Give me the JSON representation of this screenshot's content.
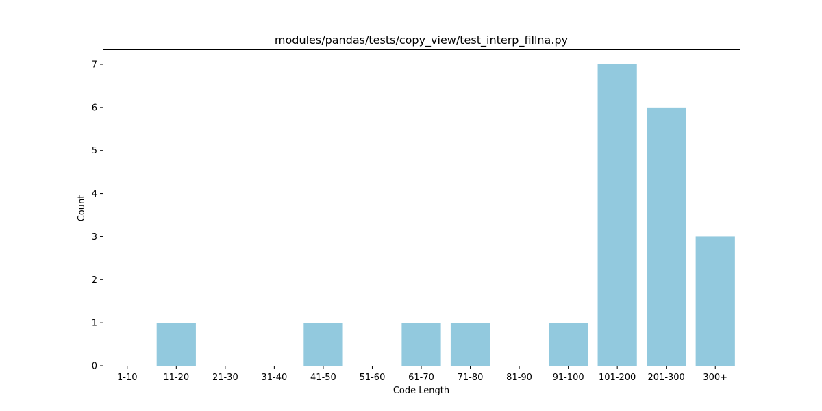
{
  "chart_data": {
    "type": "bar",
    "title": "modules/pandas/tests/copy_view/test_interp_fillna.py",
    "xlabel": "Code Length",
    "ylabel": "Count",
    "categories": [
      "1-10",
      "11-20",
      "21-30",
      "31-40",
      "41-50",
      "51-60",
      "61-70",
      "71-80",
      "81-90",
      "91-100",
      "101-200",
      "201-300",
      "300+"
    ],
    "values": [
      0,
      1,
      0,
      0,
      1,
      0,
      1,
      1,
      0,
      1,
      7,
      6,
      3
    ],
    "ylim": [
      0,
      7.35
    ],
    "yticks": [
      0,
      1,
      2,
      3,
      4,
      5,
      6,
      7
    ],
    "grid": false,
    "legend": "none",
    "bar_color": "#92c9de"
  }
}
